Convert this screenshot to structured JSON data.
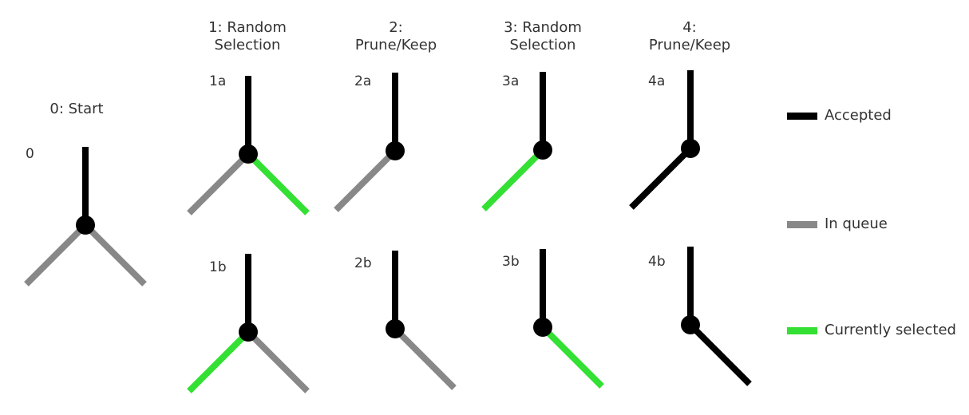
{
  "colors": {
    "accepted": "#000000",
    "in_queue": "#888888",
    "currently_selected": "#33e033",
    "text": "#333333"
  },
  "headers": {
    "col0": "0: Start",
    "col1": "1: Random\nSelection",
    "col2": "2:\nPrune/Keep",
    "col3": "3: Random\nSelection",
    "col4": "4:\nPrune/Keep"
  },
  "panels": [
    {
      "id": "0",
      "label": "0",
      "left": "in_queue",
      "right": "in_queue"
    },
    {
      "id": "1a",
      "label": "1a",
      "left": "in_queue",
      "right": "currently_selected"
    },
    {
      "id": "2a",
      "label": "2a",
      "left": "in_queue",
      "right": null
    },
    {
      "id": "3a",
      "label": "3a",
      "left": "currently_selected",
      "right": null
    },
    {
      "id": "4a",
      "label": "4a",
      "left": "accepted",
      "right": null
    },
    {
      "id": "1b",
      "label": "1b",
      "left": "currently_selected",
      "right": "in_queue"
    },
    {
      "id": "2b",
      "label": "2b",
      "left": null,
      "right": "in_queue"
    },
    {
      "id": "3b",
      "label": "3b",
      "left": null,
      "right": "currently_selected"
    },
    {
      "id": "4b",
      "label": "4b",
      "left": null,
      "right": "accepted"
    }
  ],
  "legend": [
    {
      "key": "accepted",
      "label": "Accepted"
    },
    {
      "key": "in_queue",
      "label": "In queue"
    },
    {
      "key": "currently_selected",
      "label": "Currently selected"
    }
  ]
}
